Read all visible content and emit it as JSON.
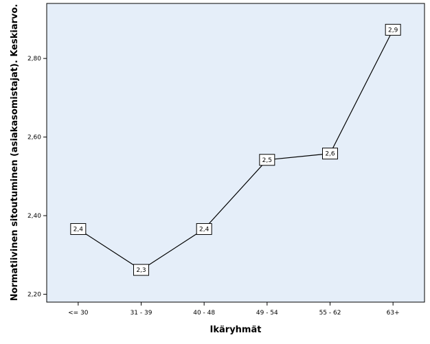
{
  "chart_data": {
    "type": "line",
    "categories": [
      "<= 30",
      "31 - 39",
      "40 - 48",
      "49 - 54",
      "55 - 62",
      "63+"
    ],
    "values": [
      2.366,
      2.262,
      2.366,
      2.542,
      2.558,
      2.873
    ],
    "data_labels": [
      "2,4",
      "2,3",
      "2,4",
      "2,5",
      "2,6",
      "2,9"
    ],
    "xlabel": "Ikäryhmät",
    "ylabel": "Normatiivinen sitoutuminen (asiakasomistajat). Keskiarvo.",
    "ylim": [
      2.18,
      2.94
    ],
    "yticks": [
      2.2,
      2.4,
      2.6,
      2.8
    ],
    "ytick_labels": [
      "2,20",
      "2,40",
      "2,60",
      "2,80"
    ],
    "grid": false,
    "colors": {
      "plot_background": "#e5eef9",
      "line": "#000000",
      "label_box": "#ffffff"
    }
  }
}
